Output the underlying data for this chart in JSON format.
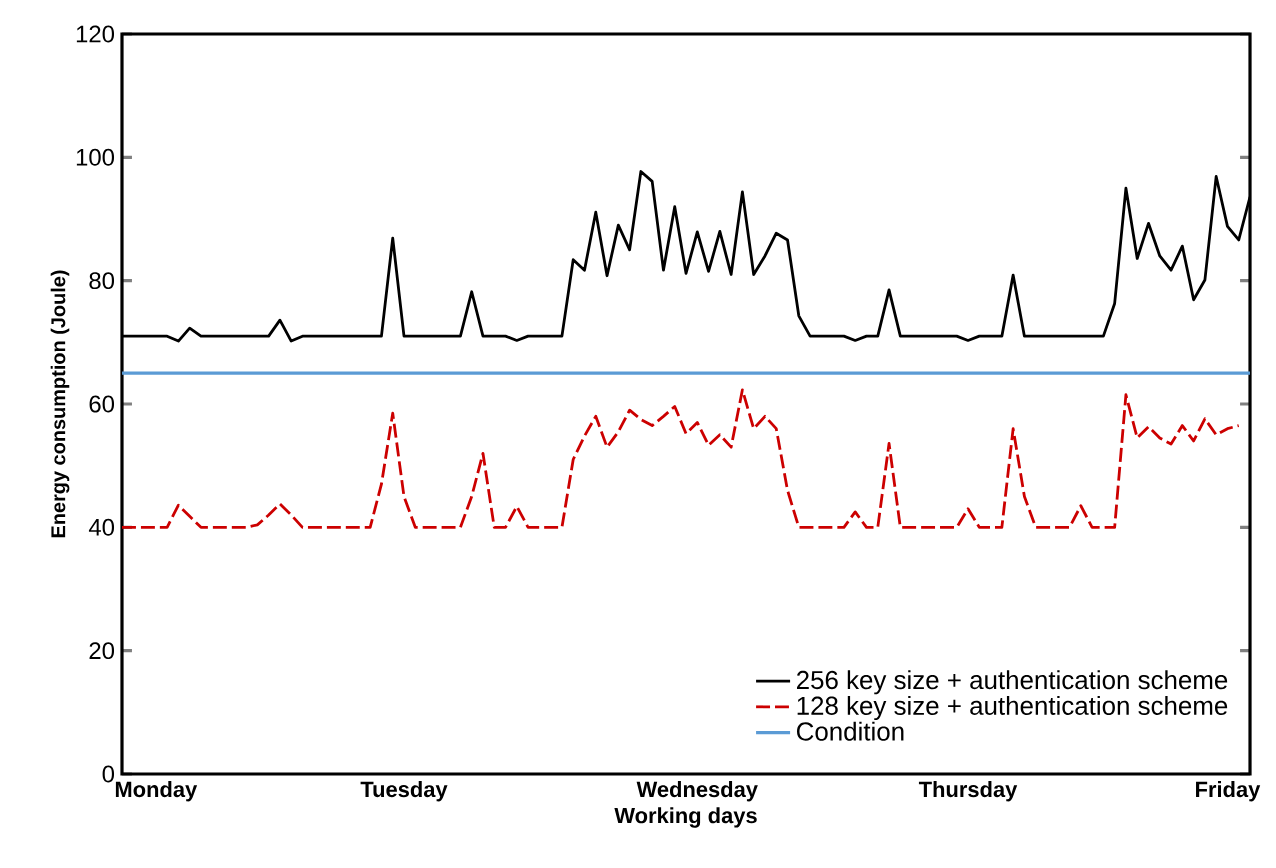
{
  "chart_data": {
    "type": "line",
    "xlabel": "Working days",
    "ylabel": "Energy consumption (Joule)",
    "categories": [
      null,
      null,
      null,
      "Monday",
      null,
      null,
      null,
      null,
      null,
      null,
      null,
      null,
      null,
      null,
      null,
      null,
      null,
      null,
      null,
      null,
      null,
      null,
      null,
      null,
      null,
      "Tuesday",
      null,
      null,
      null,
      null,
      null,
      null,
      null,
      null,
      null,
      null,
      null,
      null,
      null,
      null,
      null,
      null,
      null,
      null,
      null,
      null,
      null,
      null,
      null,
      null,
      null,
      "Wednesday",
      null,
      null,
      null,
      null,
      null,
      null,
      null,
      null,
      null,
      null,
      null,
      null,
      null,
      null,
      null,
      null,
      null,
      null,
      null,
      null,
      null,
      null,
      null,
      "Thursday",
      null,
      null,
      null,
      null,
      null,
      null,
      null,
      null,
      null,
      null,
      null,
      null,
      null,
      null,
      null,
      null,
      null,
      null,
      null,
      null,
      null,
      null,
      "Friday",
      null,
      null
    ],
    "ylim": [
      0,
      120
    ],
    "yticks": [
      0,
      20,
      40,
      60,
      80,
      100,
      120
    ],
    "legend": "bottom right",
    "marker": "none",
    "series": [
      {
        "name": "256 key size + authentication scheme",
        "color": "#000000",
        "line_style": "solid",
        "values": [
          71,
          71,
          71,
          71,
          71,
          70.2,
          72.3,
          71,
          71,
          71,
          71,
          71,
          71,
          71,
          73.6,
          70.2,
          71,
          71,
          71,
          71,
          71,
          71,
          71,
          71,
          86.9,
          71,
          71,
          71,
          71,
          71,
          71,
          78.2,
          71,
          71,
          71,
          70.3,
          71,
          71,
          71,
          71,
          83.4,
          81.7,
          91.1,
          80.8,
          89,
          85,
          97.7,
          96.1,
          81.7,
          92,
          81.2,
          87.9,
          81.5,
          88,
          81,
          94.4,
          81,
          84,
          87.7,
          86.6,
          74.3,
          71,
          71,
          71,
          71,
          70.3,
          71,
          71,
          78.5,
          71,
          71,
          71,
          71,
          71,
          71,
          70.3,
          71,
          71,
          71,
          80.9,
          71,
          71,
          71,
          71,
          71,
          71,
          71,
          71,
          76.3,
          95,
          83.6,
          89.3,
          84,
          81.7,
          85.6,
          76.9,
          80.1,
          96.9,
          88.8,
          86.6,
          93.6
        ]
      },
      {
        "name": "128 key size + authentication scheme",
        "color": "#cc0000",
        "line_style": "dashed",
        "values": [
          40,
          40,
          40,
          40,
          40,
          43.6,
          41.8,
          40,
          40,
          40,
          40,
          40,
          40.4,
          42,
          43.8,
          42,
          40,
          40,
          40,
          40,
          40,
          40,
          40,
          47,
          58.5,
          45,
          40,
          40,
          40,
          40,
          40,
          45,
          52,
          40,
          40,
          43.4,
          40,
          40,
          40,
          40,
          51,
          54.8,
          58,
          53,
          55.5,
          59,
          57.5,
          56.5,
          58,
          59.6,
          55.2,
          57,
          53.3,
          55,
          53,
          62.3,
          56,
          58,
          56,
          46,
          40,
          40,
          40,
          40,
          40,
          42.5,
          40,
          40,
          53.6,
          40,
          40,
          40,
          40,
          40,
          40,
          43,
          40,
          40,
          40,
          56,
          45,
          40,
          40,
          40,
          40,
          43.5,
          40,
          40,
          40,
          61.5,
          54.5,
          56.3,
          54.5,
          53.5,
          56.5,
          54,
          57.6,
          55,
          56,
          56.5,
          null
        ]
      }
    ],
    "ref_lines": [
      {
        "axis": "y",
        "value": 65,
        "label": "Condition",
        "color": "#5b9bd5",
        "line_style": "solid"
      }
    ]
  }
}
